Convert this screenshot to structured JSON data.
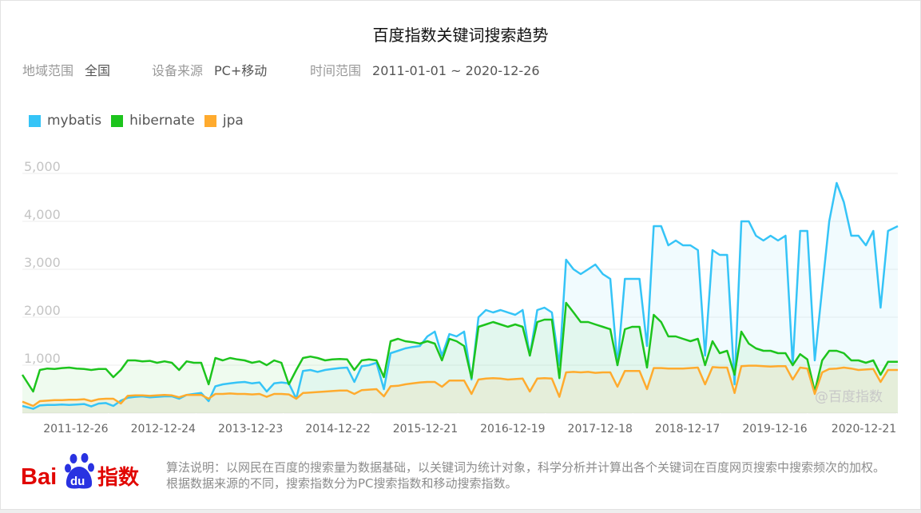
{
  "title": "百度指数关键词搜索趋势",
  "filters": [
    {
      "label": "地域范围",
      "value": "全国"
    },
    {
      "label": "设备来源",
      "value": "PC+移动"
    },
    {
      "label": "时间范围",
      "value": "2011-01-01 ~ 2020-12-26"
    }
  ],
  "colors": {
    "mybatis": "#35C4F7",
    "hibernate": "#1DC41D",
    "jpa": "#FFAB2E"
  },
  "watermark": "@百度指数",
  "logo": {
    "text_left": "Bai",
    "text_paw": "du",
    "text_right": "指数"
  },
  "footnote": "算法说明：以网民在百度的搜索量为数据基础，以关键词为统计对象，科学分析并计算出各个关键词在百度网页搜索中搜索频次的加权。根据数据来源的不同，搜索指数分为PC搜索指数和移动搜索指数。",
  "chart_data": {
    "type": "area",
    "title": "",
    "xlabel": "",
    "ylabel": "",
    "xlim": [
      "2011-01-01",
      "2020-12-26"
    ],
    "ylim": [
      0,
      5000
    ],
    "grid": true,
    "legend": "top-left",
    "y_ticks": [
      "1,000",
      "2,000",
      "3,000",
      "4,000",
      "5,000"
    ],
    "y_tick_values": [
      1000,
      2000,
      3000,
      4000,
      5000
    ],
    "x_ticks": [
      "2011-12-26",
      "2012-12-24",
      "2013-12-23",
      "2014-12-22",
      "2015-12-21",
      "2016-12-19",
      "2017-12-18",
      "2018-12-17",
      "2019-12-16",
      "2020-12-21"
    ],
    "x": [
      "2011-01",
      "2011-02",
      "2011-03",
      "2011-04",
      "2011-05",
      "2011-06",
      "2011-07",
      "2011-08",
      "2011-09",
      "2011-10",
      "2011-11",
      "2011-12",
      "2012-01",
      "2012-02",
      "2012-03",
      "2012-04",
      "2012-05",
      "2012-06",
      "2012-07",
      "2012-08",
      "2012-09",
      "2012-10",
      "2012-11",
      "2012-12",
      "2013-01",
      "2013-02",
      "2013-03",
      "2013-04",
      "2013-05",
      "2013-06",
      "2013-07",
      "2013-08",
      "2013-09",
      "2013-10",
      "2013-11",
      "2013-12",
      "2014-01",
      "2014-02",
      "2014-03",
      "2014-04",
      "2014-05",
      "2014-06",
      "2014-07",
      "2014-08",
      "2014-09",
      "2014-10",
      "2014-11",
      "2014-12",
      "2015-01",
      "2015-02",
      "2015-03",
      "2015-04",
      "2015-05",
      "2015-06",
      "2015-07",
      "2015-08",
      "2015-09",
      "2015-10",
      "2015-11",
      "2015-12",
      "2016-01",
      "2016-02",
      "2016-03",
      "2016-04",
      "2016-05",
      "2016-06",
      "2016-07",
      "2016-08",
      "2016-09",
      "2016-10",
      "2016-11",
      "2016-12",
      "2017-01",
      "2017-02",
      "2017-03",
      "2017-04",
      "2017-05",
      "2017-06",
      "2017-07",
      "2017-08",
      "2017-09",
      "2017-10",
      "2017-11",
      "2017-12",
      "2018-01",
      "2018-02",
      "2018-03",
      "2018-04",
      "2018-05",
      "2018-06",
      "2018-07",
      "2018-08",
      "2018-09",
      "2018-10",
      "2018-11",
      "2018-12",
      "2019-01",
      "2019-02",
      "2019-03",
      "2019-04",
      "2019-05",
      "2019-06",
      "2019-07",
      "2019-08",
      "2019-09",
      "2019-10",
      "2019-11",
      "2019-12",
      "2020-01",
      "2020-02",
      "2020-03",
      "2020-04",
      "2020-05",
      "2020-06",
      "2020-07",
      "2020-08",
      "2020-09",
      "2020-10",
      "2020-11",
      "2020-12"
    ],
    "series": [
      {
        "name": "mybatis",
        "values": [
          150,
          90,
          160,
          170,
          170,
          180,
          170,
          180,
          190,
          140,
          200,
          210,
          150,
          260,
          320,
          340,
          350,
          330,
          340,
          350,
          350,
          300,
          380,
          400,
          420,
          250,
          560,
          600,
          620,
          640,
          650,
          620,
          640,
          450,
          620,
          640,
          620,
          300,
          880,
          900,
          860,
          900,
          920,
          940,
          950,
          650,
          980,
          1000,
          1050,
          500,
          1250,
          1300,
          1350,
          1380,
          1400,
          1600,
          1700,
          1200,
          1650,
          1600,
          1700,
          700,
          2000,
          2150,
          2100,
          2150,
          2100,
          2050,
          2150,
          1200,
          2150,
          2200,
          2100,
          1000,
          3200,
          3000,
          2900,
          3000,
          3100,
          2900,
          2800,
          1000,
          2800,
          2800,
          2800,
          1400,
          3900,
          3900,
          3500,
          3600,
          3500,
          3500,
          3400,
          1200,
          3400,
          3300,
          3300,
          600,
          4000,
          4000,
          3700,
          3600,
          3700,
          3600,
          3700,
          1000,
          3800,
          3800,
          1100,
          2600,
          4000,
          4800,
          4400,
          3700,
          3700,
          3500,
          3800,
          2200,
          3800,
          3900
        ]
      },
      {
        "name": "hibernate",
        "values": [
          800,
          450,
          900,
          930,
          920,
          940,
          950,
          930,
          920,
          900,
          920,
          920,
          750,
          900,
          1100,
          1100,
          1080,
          1090,
          1050,
          1080,
          1050,
          900,
          1080,
          1050,
          1050,
          600,
          1150,
          1100,
          1150,
          1120,
          1100,
          1050,
          1080,
          1000,
          1100,
          1050,
          600,
          900,
          1150,
          1180,
          1150,
          1100,
          1120,
          1130,
          1120,
          900,
          1100,
          1120,
          1100,
          750,
          1500,
          1550,
          1500,
          1480,
          1450,
          1500,
          1450,
          1100,
          1550,
          1500,
          1400,
          730,
          1800,
          1850,
          1900,
          1850,
          1800,
          1850,
          1800,
          1200,
          1900,
          1950,
          1950,
          730,
          2300,
          2100,
          1900,
          1900,
          1850,
          1800,
          1750,
          1000,
          1750,
          1800,
          1800,
          950,
          2050,
          1900,
          1600,
          1600,
          1550,
          1500,
          1550,
          1000,
          1500,
          1250,
          1300,
          800,
          1700,
          1450,
          1350,
          1300,
          1300,
          1250,
          1250,
          1000,
          1230,
          1120,
          450,
          1100,
          1300,
          1300,
          1250,
          1100,
          1100,
          1050,
          1100,
          800,
          1070,
          1070
        ]
      },
      {
        "name": "jpa",
        "values": [
          240,
          150,
          250,
          260,
          270,
          270,
          280,
          280,
          290,
          250,
          290,
          300,
          300,
          200,
          360,
          370,
          370,
          360,
          370,
          380,
          370,
          330,
          380,
          380,
          380,
          300,
          400,
          400,
          410,
          400,
          400,
          390,
          400,
          340,
          400,
          400,
          390,
          300,
          420,
          430,
          440,
          450,
          460,
          470,
          470,
          400,
          480,
          490,
          500,
          350,
          560,
          570,
          600,
          620,
          640,
          650,
          650,
          550,
          680,
          680,
          680,
          400,
          700,
          720,
          730,
          720,
          700,
          710,
          720,
          450,
          720,
          730,
          720,
          340,
          850,
          860,
          850,
          860,
          840,
          850,
          850,
          550,
          880,
          880,
          880,
          500,
          940,
          940,
          930,
          930,
          930,
          940,
          950,
          600,
          960,
          950,
          950,
          420,
          980,
          990,
          990,
          980,
          970,
          980,
          980,
          700,
          950,
          930,
          400,
          850,
          920,
          930,
          950,
          930,
          900,
          910,
          920,
          650,
          900,
          900
        ]
      }
    ]
  }
}
